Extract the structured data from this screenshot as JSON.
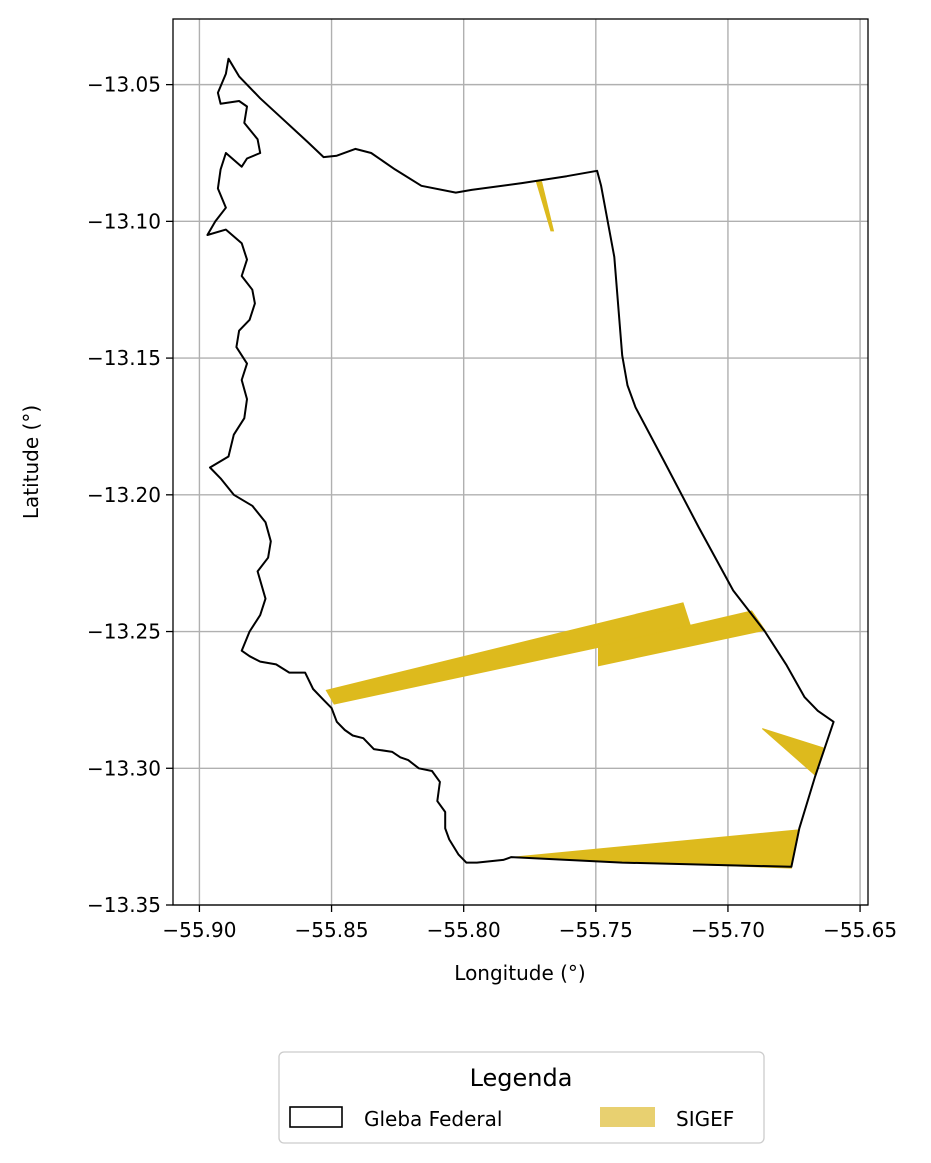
{
  "chart_data": {
    "type": "map",
    "xlabel": "Longitude (°)",
    "ylabel": "Latitude (°)",
    "xlim": [
      -55.91,
      -55.647
    ],
    "ylim": [
      -13.35,
      -13.026
    ],
    "grid": true,
    "x_ticks": [
      {
        "value": -55.9,
        "label": "−55.90"
      },
      {
        "value": -55.85,
        "label": "−55.85"
      },
      {
        "value": -55.8,
        "label": "−55.80"
      },
      {
        "value": -55.75,
        "label": "−55.75"
      },
      {
        "value": -55.7,
        "label": "−55.70"
      },
      {
        "value": -55.65,
        "label": "−55.65"
      }
    ],
    "y_ticks": [
      {
        "value": -13.05,
        "label": "−13.05"
      },
      {
        "value": -13.1,
        "label": "−13.10"
      },
      {
        "value": -13.15,
        "label": "−13.15"
      },
      {
        "value": -13.2,
        "label": "−13.20"
      },
      {
        "value": -13.25,
        "label": "−13.25"
      },
      {
        "value": -13.3,
        "label": "−13.30"
      },
      {
        "value": -13.35,
        "label": "−13.35"
      }
    ],
    "legend": {
      "title": "Legenda",
      "placement": "bottom-center",
      "entries": [
        {
          "name": "Gleba Federal",
          "kind": "outline",
          "color": "#000000"
        },
        {
          "name": "SIGEF",
          "kind": "fill",
          "color": "#E8D070"
        }
      ]
    },
    "series": [
      {
        "name": "Gleba Federal",
        "geometry": "polygon",
        "color": "#000000",
        "coords": [
          [
            -55.889,
            -13.0405
          ],
          [
            -55.885,
            -13.047
          ],
          [
            -55.877,
            -13.055
          ],
          [
            -55.868,
            -13.063
          ],
          [
            -55.859,
            -13.071
          ],
          [
            -55.853,
            -13.0765
          ],
          [
            -55.848,
            -13.076
          ],
          [
            -55.841,
            -13.0735
          ],
          [
            -55.835,
            -13.075
          ],
          [
            -55.826,
            -13.081
          ],
          [
            -55.816,
            -13.087
          ],
          [
            -55.803,
            -13.0895
          ],
          [
            -55.797,
            -13.0885
          ],
          [
            -55.778,
            -13.086
          ],
          [
            -55.761,
            -13.0835
          ],
          [
            -55.7495,
            -13.0815
          ],
          [
            -55.748,
            -13.087
          ],
          [
            -55.743,
            -13.113
          ],
          [
            -55.74,
            -13.149
          ],
          [
            -55.738,
            -13.16
          ],
          [
            -55.735,
            -13.168
          ],
          [
            -55.724,
            -13.188
          ],
          [
            -55.711,
            -13.212
          ],
          [
            -55.698,
            -13.235
          ],
          [
            -55.686,
            -13.25
          ],
          [
            -55.678,
            -13.262
          ],
          [
            -55.671,
            -13.274
          ],
          [
            -55.666,
            -13.279
          ],
          [
            -55.66,
            -13.283
          ],
          [
            -55.667,
            -13.303
          ],
          [
            -55.673,
            -13.322
          ],
          [
            -55.676,
            -13.336
          ],
          [
            -55.7,
            -13.3355
          ],
          [
            -55.74,
            -13.3345
          ],
          [
            -55.782,
            -13.3325
          ],
          [
            -55.785,
            -13.3335
          ],
          [
            -55.79,
            -13.334
          ],
          [
            -55.795,
            -13.3345
          ],
          [
            -55.799,
            -13.3345
          ],
          [
            -55.802,
            -13.3315
          ],
          [
            -55.8055,
            -13.326
          ],
          [
            -55.807,
            -13.322
          ],
          [
            -55.807,
            -13.316
          ],
          [
            -55.81,
            -13.312
          ],
          [
            -55.809,
            -13.305
          ],
          [
            -55.812,
            -13.301
          ],
          [
            -55.817,
            -13.3
          ],
          [
            -55.821,
            -13.297
          ],
          [
            -55.824,
            -13.296
          ],
          [
            -55.827,
            -13.294
          ],
          [
            -55.834,
            -13.293
          ],
          [
            -55.838,
            -13.289
          ],
          [
            -55.842,
            -13.288
          ],
          [
            -55.845,
            -13.286
          ],
          [
            -55.848,
            -13.283
          ],
          [
            -55.85,
            -13.278
          ],
          [
            -55.853,
            -13.275
          ],
          [
            -55.857,
            -13.271
          ],
          [
            -55.86,
            -13.265
          ],
          [
            -55.866,
            -13.265
          ],
          [
            -55.871,
            -13.262
          ],
          [
            -55.877,
            -13.261
          ],
          [
            -55.881,
            -13.259
          ],
          [
            -55.884,
            -13.257
          ],
          [
            -55.881,
            -13.25
          ],
          [
            -55.877,
            -13.244
          ],
          [
            -55.875,
            -13.238
          ],
          [
            -55.878,
            -13.228
          ],
          [
            -55.874,
            -13.223
          ],
          [
            -55.873,
            -13.217
          ],
          [
            -55.875,
            -13.21
          ],
          [
            -55.88,
            -13.204
          ],
          [
            -55.887,
            -13.2
          ],
          [
            -55.892,
            -13.194
          ],
          [
            -55.896,
            -13.19
          ],
          [
            -55.889,
            -13.186
          ],
          [
            -55.887,
            -13.178
          ],
          [
            -55.883,
            -13.172
          ],
          [
            -55.882,
            -13.165
          ],
          [
            -55.884,
            -13.158
          ],
          [
            -55.882,
            -13.152
          ],
          [
            -55.886,
            -13.146
          ],
          [
            -55.885,
            -13.14
          ],
          [
            -55.881,
            -13.136
          ],
          [
            -55.879,
            -13.13
          ],
          [
            -55.88,
            -13.125
          ],
          [
            -55.884,
            -13.12
          ],
          [
            -55.882,
            -13.114
          ],
          [
            -55.884,
            -13.108
          ],
          [
            -55.89,
            -13.103
          ],
          [
            -55.897,
            -13.105
          ],
          [
            -55.894,
            -13.1
          ],
          [
            -55.89,
            -13.095
          ],
          [
            -55.893,
            -13.088
          ],
          [
            -55.892,
            -13.081
          ],
          [
            -55.89,
            -13.075
          ],
          [
            -55.884,
            -13.08
          ],
          [
            -55.882,
            -13.077
          ],
          [
            -55.877,
            -13.075
          ],
          [
            -55.878,
            -13.07
          ],
          [
            -55.883,
            -13.064
          ],
          [
            -55.882,
            -13.058
          ],
          [
            -55.885,
            -13.056
          ],
          [
            -55.892,
            -13.057
          ],
          [
            -55.893,
            -13.053
          ],
          [
            -55.89,
            -13.046
          ],
          [
            -55.889,
            -13.0405
          ]
        ]
      },
      {
        "name": "SIGEF",
        "geometry": "multipolygon",
        "color": "#DDBA1D",
        "polygons": [
          [
            [
              -55.7725,
              -13.0855
            ],
            [
              -55.7705,
              -13.0855
            ],
            [
              -55.766,
              -13.1035
            ],
            [
              -55.767,
              -13.1035
            ]
          ],
          [
            [
              -55.852,
              -13.2715
            ],
            [
              -55.717,
              -13.2395
            ],
            [
              -55.714,
              -13.2485
            ],
            [
              -55.849,
              -13.2765
            ]
          ],
          [
            [
              -55.749,
              -13.2555
            ],
            [
              -55.691,
              -13.2425
            ],
            [
              -55.686,
              -13.2495
            ],
            [
              -55.749,
              -13.2625
            ]
          ],
          [
            [
              -55.687,
              -13.2855
            ],
            [
              -55.664,
              -13.2925
            ],
            [
              -55.667,
              -13.3025
            ]
          ],
          [
            [
              -55.781,
              -13.3325
            ],
            [
              -55.673,
              -13.3225
            ],
            [
              -55.676,
              -13.3365
            ],
            [
              -55.76,
              -13.3335
            ]
          ]
        ]
      }
    ]
  }
}
